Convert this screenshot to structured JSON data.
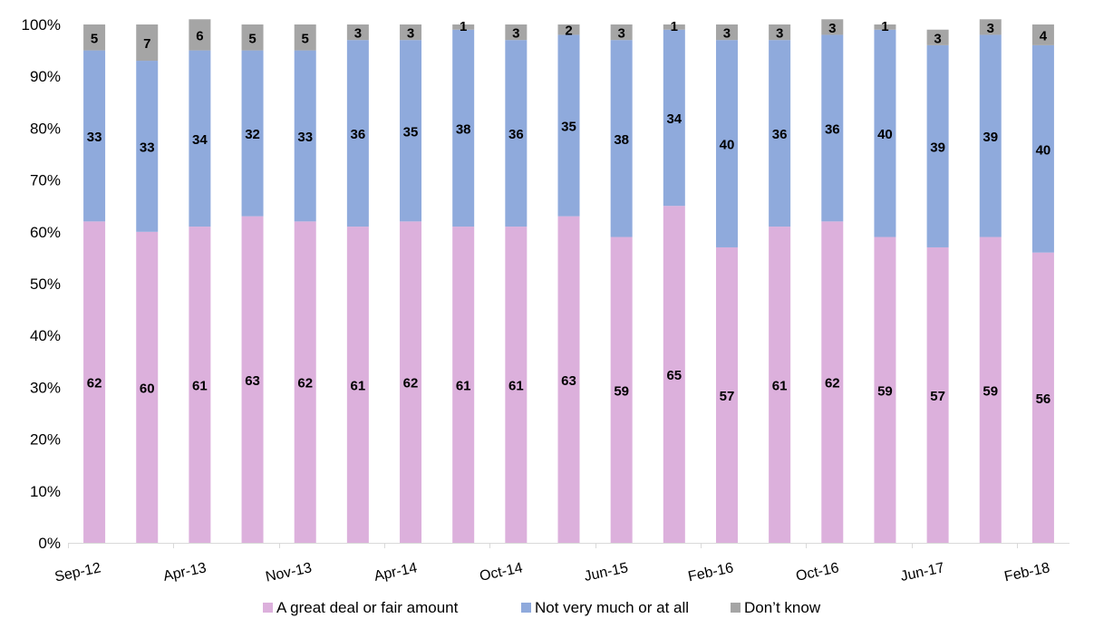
{
  "chart_data": {
    "type": "bar",
    "stacked": true,
    "percent_stacked": true,
    "categories": [
      "Sep-12",
      "",
      "Apr-13",
      "",
      "Nov-13",
      "",
      "Apr-14",
      "",
      "Oct-14",
      "",
      "Jun-15",
      "",
      "Feb-16",
      "",
      "Oct-16",
      "",
      "Jun-17",
      "",
      "Feb-18"
    ],
    "series": [
      {
        "name": "A great deal or fair amount",
        "color": "#dcb0dc",
        "values": [
          62,
          60,
          61,
          63,
          62,
          61,
          62,
          61,
          61,
          63,
          59,
          65,
          57,
          61,
          62,
          59,
          57,
          59,
          56
        ]
      },
      {
        "name": "Not very much or at all",
        "color": "#8faadc",
        "values": [
          33,
          33,
          34,
          32,
          33,
          36,
          35,
          38,
          36,
          35,
          38,
          34,
          40,
          36,
          36,
          40,
          39,
          39,
          40
        ]
      },
      {
        "name": "Don’t know",
        "color": "#a5a5a5",
        "values": [
          5,
          7,
          6,
          5,
          5,
          3,
          3,
          1,
          3,
          2,
          3,
          1,
          3,
          3,
          3,
          1,
          3,
          3,
          4
        ]
      }
    ],
    "y_ticks": [
      "0%",
      "10%",
      "20%",
      "30%",
      "40%",
      "50%",
      "60%",
      "70%",
      "80%",
      "90%",
      "100%"
    ],
    "ylim": [
      0,
      100
    ],
    "legend_position": "bottom",
    "grid": false
  }
}
